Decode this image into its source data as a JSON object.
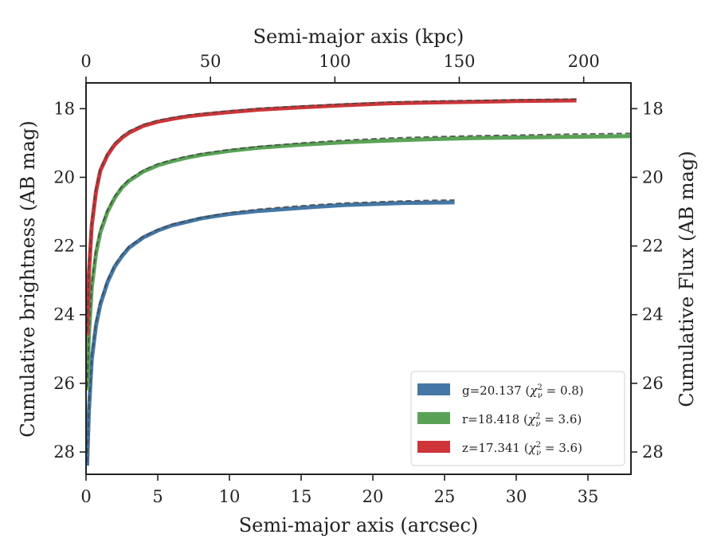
{
  "chart_data": {
    "type": "line",
    "xlabel": "Semi-major axis (arcsec)",
    "ylabel": "Cumulative brightness (AB mag)",
    "top_xlabel": "Semi-major axis (kpc)",
    "right_ylabel": "Cumulative Flux (AB mag)",
    "xlim": [
      0,
      38
    ],
    "ylim": [
      28.65,
      17.25
    ],
    "y_inverted": true,
    "top_xlim": [
      0,
      219
    ],
    "x_ticks": [
      "0",
      "5",
      "10",
      "15",
      "20",
      "25",
      "30",
      "35"
    ],
    "y_ticks": [
      "18",
      "20",
      "22",
      "24",
      "26",
      "28"
    ],
    "top_x_ticks": [
      "0",
      "50",
      "100",
      "150",
      "200"
    ],
    "legend_position": "lower-right",
    "grid": false,
    "series": [
      {
        "name": "g",
        "legend_label": "g=20.137 (χ²ᵥ = 0.8)",
        "legend_prefix": "g=20.137 (",
        "legend_chi": "χ",
        "legend_sup": "2",
        "legend_sub": "ν",
        "legend_eq": " = 0.8)",
        "color": "#4477a5",
        "x": [
          0.08,
          0.2,
          0.4,
          0.7,
          1.0,
          1.5,
          2.0,
          2.5,
          3.0,
          4.0,
          5.0,
          6.0,
          7.0,
          8.0,
          9.0,
          10.0,
          12.0,
          14.0,
          16.0,
          18.0,
          20.0,
          22.0,
          24.0,
          25.7
        ],
        "y": [
          28.4,
          26.8,
          25.3,
          24.3,
          23.7,
          23.05,
          22.6,
          22.3,
          22.05,
          21.75,
          21.55,
          21.4,
          21.3,
          21.2,
          21.13,
          21.07,
          20.98,
          20.92,
          20.86,
          20.81,
          20.78,
          20.75,
          20.74,
          20.73
        ],
        "model_y": [
          28.3,
          26.7,
          25.2,
          24.2,
          23.6,
          22.98,
          22.55,
          22.25,
          22.02,
          21.72,
          21.52,
          21.37,
          21.27,
          21.18,
          21.1,
          21.03,
          20.93,
          20.86,
          20.8,
          20.75,
          20.72,
          20.69,
          20.67,
          20.66
        ]
      },
      {
        "name": "r",
        "legend_label": "r=18.418 (χ²ᵥ = 3.6)",
        "legend_prefix": "r=18.418 (",
        "legend_chi": "χ",
        "legend_sup": "2",
        "legend_sub": "ν",
        "legend_eq": " = 3.6)",
        "color": "#5aa356",
        "x": [
          0.08,
          0.2,
          0.4,
          0.7,
          1.0,
          1.5,
          2.0,
          2.5,
          3.0,
          4.0,
          5.0,
          6.0,
          7.0,
          8.0,
          10.0,
          12.0,
          15.0,
          18.0,
          21.0,
          24.0,
          27.0,
          30.0,
          34.0,
          38.0
        ],
        "y": [
          26.2,
          24.6,
          23.2,
          22.2,
          21.6,
          21.0,
          20.6,
          20.3,
          20.1,
          19.83,
          19.65,
          19.53,
          19.43,
          19.35,
          19.23,
          19.14,
          19.05,
          18.98,
          18.93,
          18.89,
          18.86,
          18.84,
          18.82,
          18.8
        ],
        "model_y": [
          26.1,
          24.5,
          23.1,
          22.1,
          21.5,
          20.95,
          20.55,
          20.27,
          20.06,
          19.79,
          19.61,
          19.49,
          19.39,
          19.31,
          19.19,
          19.1,
          19.0,
          18.92,
          18.86,
          18.82,
          18.79,
          18.77,
          18.74,
          18.72
        ]
      },
      {
        "name": "z",
        "legend_label": "z=17.341 (χ²ᵥ = 3.6)",
        "legend_prefix": "z=17.341 (",
        "legend_chi": "χ",
        "legend_sup": "2",
        "legend_sub": "ν",
        "legend_eq": " = 3.6)",
        "color": "#cd3539",
        "x": [
          0.08,
          0.2,
          0.4,
          0.7,
          1.0,
          1.5,
          2.0,
          2.5,
          3.0,
          4.0,
          5.0,
          6.0,
          7.0,
          8.0,
          10.0,
          12.0,
          15.0,
          18.0,
          21.0,
          24.0,
          27.0,
          30.0,
          34.2
        ],
        "y": [
          24.6,
          22.8,
          21.4,
          20.4,
          19.8,
          19.35,
          19.05,
          18.85,
          18.7,
          18.5,
          18.38,
          18.3,
          18.23,
          18.18,
          18.1,
          18.03,
          17.96,
          17.9,
          17.85,
          17.82,
          17.8,
          17.78,
          17.76
        ],
        "model_y": [
          24.5,
          22.7,
          21.3,
          20.3,
          19.75,
          19.3,
          19.0,
          18.8,
          18.65,
          18.46,
          18.34,
          18.26,
          18.19,
          18.14,
          18.06,
          17.99,
          17.92,
          17.86,
          17.81,
          17.78,
          17.76,
          17.74,
          17.72
        ]
      }
    ]
  }
}
